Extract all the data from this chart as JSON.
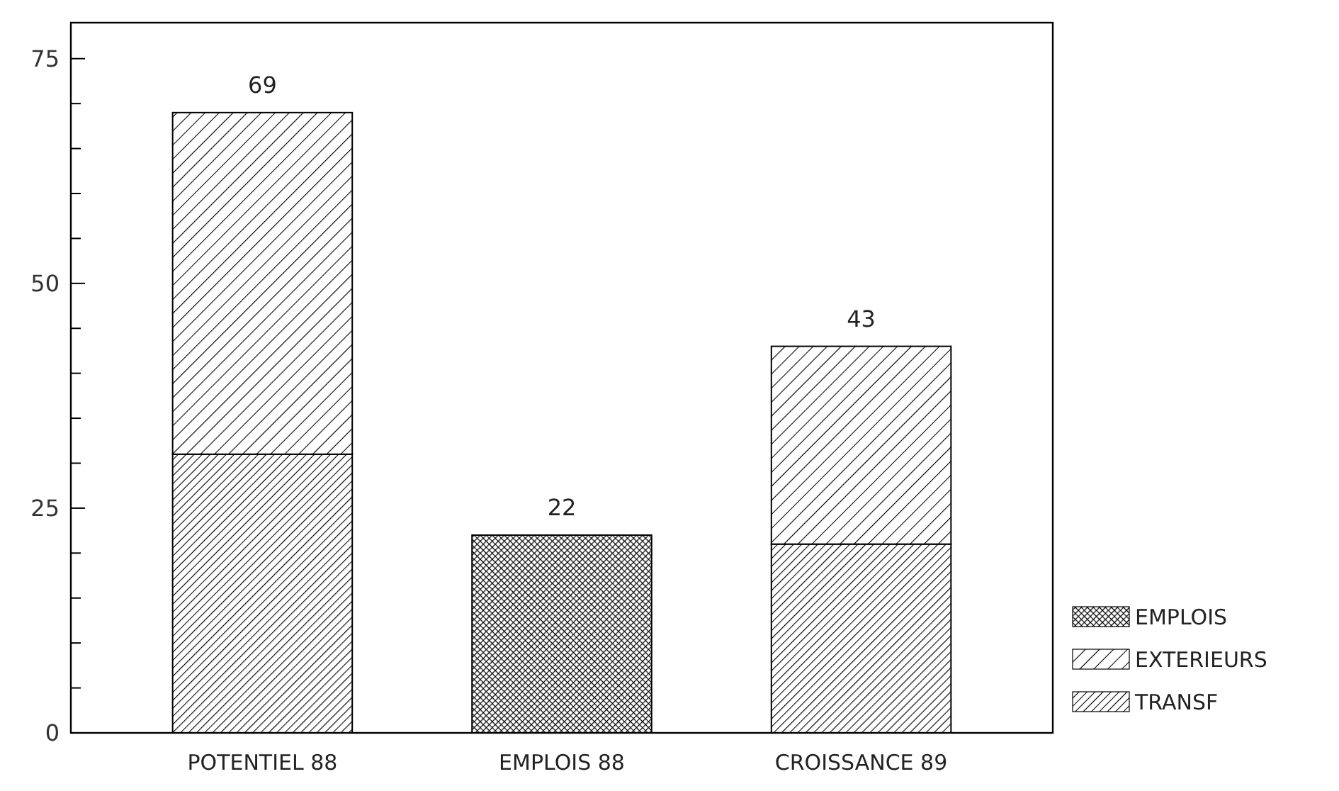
{
  "chart_data": {
    "type": "bar",
    "stacked": true,
    "categories": [
      "POTENTIEL 88",
      "EMPLOIS 88",
      "CROISSANCE 89"
    ],
    "series": [
      {
        "name": "TRANSF",
        "color": "#000000",
        "values": [
          31,
          null,
          21
        ]
      },
      {
        "name": "EXTERIEURS",
        "color": "#000000",
        "values": [
          38,
          null,
          22
        ]
      },
      {
        "name": "EMPLOIS",
        "color": "#000000",
        "values": [
          null,
          22,
          null
        ]
      }
    ],
    "totals": [
      "69",
      "22",
      "43"
    ],
    "ylim": [
      0,
      79
    ],
    "yticks": [
      0,
      {
        "value": 5,
        "label": null
      },
      {
        "value": 10,
        "label": null
      },
      {
        "value": 15,
        "label": null
      },
      {
        "value": 20,
        "label": null
      },
      25,
      {
        "value": 30,
        "label": null
      },
      {
        "value": 35,
        "label": null
      },
      {
        "value": 40,
        "label": null
      },
      {
        "value": 45,
        "label": null
      },
      50,
      {
        "value": 55,
        "label": null
      },
      {
        "value": 60,
        "label": null
      },
      {
        "value": 65,
        "label": null
      },
      {
        "value": 70,
        "label": null
      },
      75
    ],
    "legend": "bottom right",
    "grid": false
  }
}
